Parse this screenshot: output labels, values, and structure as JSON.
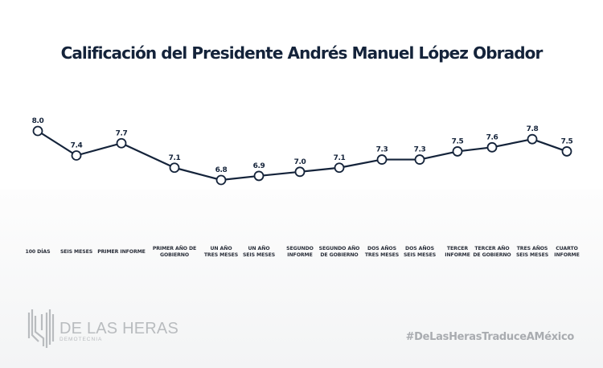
{
  "chart_data": {
    "type": "line",
    "title": "Calificación del Presidente Andrés Manuel López Obrador",
    "xlabel": "",
    "ylabel": "",
    "categories": [
      "100 DÍAS",
      "SEIS MESES",
      "PRIMER INFORME",
      "PRIMER AÑO DE\nGOBIERNO",
      "UN AÑO\nTRES MESES",
      "UN AÑO\nSEIS MESES",
      "SEGUNDO\nINFORME",
      "SEGUNDO AÑO\nDE GOBIERNO",
      "DOS AÑOS\nTRES MESES",
      "DOS AÑOS\nSEIS MESES",
      "TERCER\nINFORME",
      "TERCER AÑO\nDE GOBIERNO",
      "TRES AÑOS\nSEIS MESES",
      "CUARTO\nINFORME"
    ],
    "series": [
      {
        "name": "Calificación",
        "values": [
          8.0,
          7.4,
          7.7,
          7.1,
          6.8,
          6.9,
          7.0,
          7.1,
          7.3,
          7.3,
          7.5,
          7.6,
          7.8,
          7.5
        ],
        "labels": [
          "8.0",
          "7.4",
          "7.7",
          "7.1",
          "6.8",
          "6.9",
          "7.0",
          "7.1",
          "7.3",
          "7.3",
          "7.5",
          "7.6",
          "7.8",
          "7.5"
        ]
      }
    ],
    "ylim": [
      6.8,
      8.0
    ],
    "grid": false,
    "legend": "none",
    "colors": {
      "line": "#14233a",
      "marker_fill": "#ffffff"
    }
  },
  "branding": {
    "logo_name": "DE LAS HERAS",
    "logo_subtitle": "DEMOTECNIA",
    "hashtag": "#DeLasHerasTraduceAMéxico"
  }
}
